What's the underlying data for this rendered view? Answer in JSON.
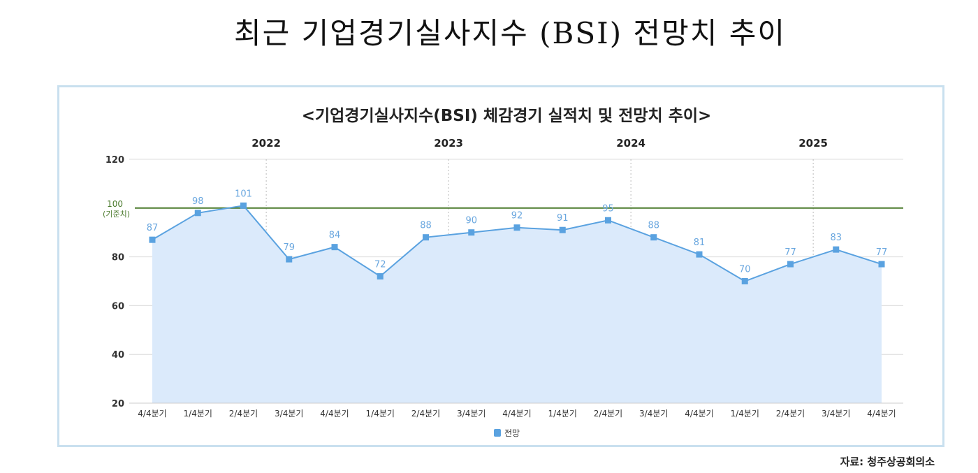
{
  "title": "최근 기업경기실사지수 (BSI) 전망치 추이",
  "source": "자료: 청주상공회의소",
  "chart_data": {
    "type": "area",
    "title": "<기업경기실사지수(BSI) 체감경기 실적치 및 전망치 추이>",
    "categories": [
      "4/4분기",
      "1/4분기",
      "2/4분기",
      "3/4분기",
      "4/4분기",
      "1/4분기",
      "2/4분기",
      "3/4분기",
      "4/4분기",
      "1/4분기",
      "2/4분기",
      "3/4분기",
      "4/4분기",
      "1/4분기",
      "2/4분기",
      "3/4분기",
      "4/4분기"
    ],
    "years": [
      {
        "label": "2022",
        "after_index": 2
      },
      {
        "label": "2023",
        "after_index": 6
      },
      {
        "label": "2024",
        "after_index": 10
      },
      {
        "label": "2025",
        "after_index": 14
      }
    ],
    "series": [
      {
        "name": "전망",
        "values": [
          87,
          98,
          101,
          79,
          84,
          72,
          88,
          90,
          92,
          91,
          95,
          88,
          81,
          70,
          77,
          83,
          77
        ],
        "color": "#5aa2e0",
        "fill": "#dbeafb"
      }
    ],
    "ylim": [
      20,
      120
    ],
    "yticks": [
      20,
      40,
      60,
      80,
      120
    ],
    "reference_line": {
      "value": 100,
      "label": "100",
      "sublabel": "(기준치)",
      "color": "#4a7a2c"
    },
    "grid": true,
    "legend": "bottom-center"
  }
}
